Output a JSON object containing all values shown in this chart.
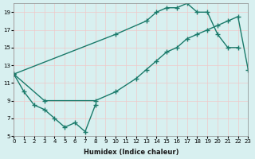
{
  "xlabel": "Humidex (Indice chaleur)",
  "bg_color": "#d8f0f0",
  "grid_color": "#f0c8c8",
  "line_color": "#1a7a6a",
  "xlim": [
    0,
    23
  ],
  "ylim": [
    5,
    20
  ],
  "xticks": [
    0,
    1,
    2,
    3,
    4,
    5,
    6,
    7,
    8,
    9,
    10,
    11,
    12,
    13,
    14,
    15,
    16,
    17,
    18,
    19,
    20,
    21,
    22,
    23
  ],
  "yticks": [
    5,
    7,
    9,
    11,
    13,
    15,
    17,
    19
  ],
  "s1_x": [
    0,
    1,
    2,
    3,
    4,
    5,
    6,
    7,
    8
  ],
  "s1_y": [
    12,
    10,
    8.5,
    8,
    7,
    6,
    6.5,
    5.5,
    8.5
  ],
  "s2_x": [
    0,
    10,
    13,
    14,
    15,
    16,
    17,
    18,
    19,
    20,
    21,
    22
  ],
  "s2_y": [
    12,
    16.5,
    18,
    19,
    19.5,
    19.5,
    20,
    19,
    19,
    16.5,
    15,
    15
  ],
  "s3_x": [
    0,
    3,
    8,
    10,
    12,
    13,
    14,
    15,
    16,
    17,
    18,
    19,
    20,
    21,
    22,
    23
  ],
  "s3_y": [
    12,
    9,
    9,
    10,
    11.5,
    12.5,
    13.5,
    14.5,
    15,
    16,
    16.5,
    17,
    17.5,
    18,
    18.5,
    12.5
  ]
}
